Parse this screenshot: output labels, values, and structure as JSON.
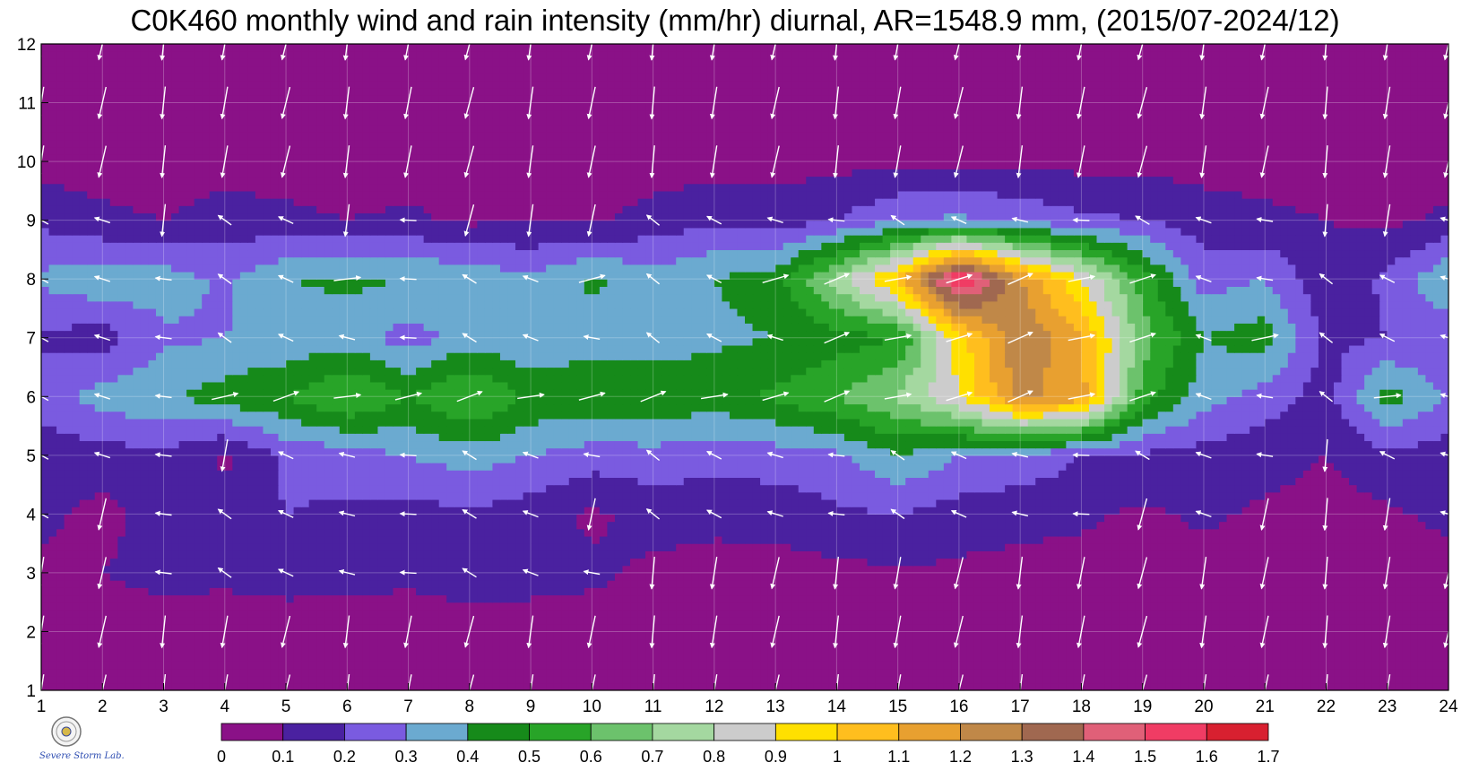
{
  "chart_data": {
    "type": "heatmap",
    "title": "C0K460 monthly wind and rain intensity (mm/hr) diurnal, AR=1548.9 mm, (2015/07-2024/12)",
    "x_ticks": [
      1,
      2,
      3,
      4,
      5,
      6,
      7,
      8,
      9,
      10,
      11,
      12,
      13,
      14,
      15,
      16,
      17,
      18,
      19,
      20,
      21,
      22,
      23,
      24
    ],
    "y_ticks": [
      1,
      2,
      3,
      4,
      5,
      6,
      7,
      8,
      9,
      10,
      11,
      12
    ],
    "xlim": [
      1,
      24
    ],
    "ylim": [
      1,
      12
    ],
    "grid": true,
    "colorbar": {
      "levels": [
        "0",
        "0.1",
        "0.2",
        "0.3",
        "0.4",
        "0.5",
        "0.6",
        "0.7",
        "0.8",
        "0.9",
        "1",
        "1.1",
        "1.2",
        "1.3",
        "1.4",
        "1.5",
        "1.6",
        "1.7"
      ],
      "colors": [
        "#8a1187",
        "#4a21a0",
        "#7a5be0",
        "#6baad0",
        "#168a1a",
        "#28a428",
        "#6cc26c",
        "#a4d8a0",
        "#cccccc",
        "#ffe000",
        "#ffbe1e",
        "#e8a030",
        "#c08848",
        "#a06850",
        "#e06078",
        "#f03c64",
        "#d82030"
      ]
    },
    "z_rows_month_1_to_12": [
      [
        0.05,
        0.05,
        0.05,
        0.05,
        0.05,
        0.05,
        0.05,
        0.05,
        0.05,
        0.05,
        0.05,
        0.05,
        0.05,
        0.05,
        0.05,
        0.05,
        0.05,
        0.05,
        0.05,
        0.05,
        0.05,
        0.05,
        0.05,
        0.05
      ],
      [
        0.05,
        0.05,
        0.05,
        0.05,
        0.05,
        0.05,
        0.05,
        0.05,
        0.05,
        0.05,
        0.05,
        0.05,
        0.05,
        0.05,
        0.05,
        0.05,
        0.05,
        0.05,
        0.05,
        0.05,
        0.05,
        0.05,
        0.05,
        0.05
      ],
      [
        0.08,
        0.1,
        0.13,
        0.12,
        0.14,
        0.13,
        0.12,
        0.15,
        0.14,
        0.12,
        0.08,
        0.06,
        0.06,
        0.07,
        0.09,
        0.08,
        0.07,
        0.06,
        0.05,
        0.05,
        0.05,
        0.05,
        0.05,
        0.05
      ],
      [
        0.12,
        0.07,
        0.15,
        0.13,
        0.2,
        0.18,
        0.16,
        0.18,
        0.15,
        0.08,
        0.14,
        0.13,
        0.14,
        0.18,
        0.2,
        0.15,
        0.13,
        0.12,
        0.08,
        0.12,
        0.08,
        0.06,
        0.08,
        0.13
      ],
      [
        0.14,
        0.15,
        0.18,
        0.08,
        0.22,
        0.25,
        0.3,
        0.35,
        0.3,
        0.25,
        0.26,
        0.24,
        0.25,
        0.28,
        0.4,
        0.3,
        0.28,
        0.2,
        0.18,
        0.16,
        0.14,
        0.1,
        0.18,
        0.15
      ],
      [
        0.25,
        0.35,
        0.38,
        0.45,
        0.5,
        0.62,
        0.5,
        0.62,
        0.48,
        0.5,
        0.48,
        0.46,
        0.52,
        0.6,
        0.72,
        0.9,
        1.22,
        1.15,
        0.55,
        0.35,
        0.25,
        0.15,
        0.45,
        0.28
      ],
      [
        0.18,
        0.15,
        0.28,
        0.3,
        0.32,
        0.35,
        0.25,
        0.35,
        0.3,
        0.35,
        0.35,
        0.38,
        0.4,
        0.45,
        0.5,
        0.95,
        1.3,
        1.1,
        0.65,
        0.4,
        0.45,
        0.18,
        0.2,
        0.22
      ],
      [
        0.32,
        0.38,
        0.35,
        0.28,
        0.4,
        0.42,
        0.4,
        0.38,
        0.32,
        0.42,
        0.35,
        0.4,
        0.45,
        0.75,
        1.05,
        1.62,
        1.2,
        0.9,
        0.55,
        0.25,
        0.3,
        0.12,
        0.22,
        0.4
      ],
      [
        0.18,
        0.12,
        0.1,
        0.15,
        0.12,
        0.1,
        0.12,
        0.08,
        0.1,
        0.08,
        0.14,
        0.18,
        0.15,
        0.2,
        0.3,
        0.32,
        0.28,
        0.22,
        0.2,
        0.15,
        0.12,
        0.1,
        0.08,
        0.12
      ],
      [
        0.05,
        0.06,
        0.05,
        0.05,
        0.06,
        0.05,
        0.05,
        0.05,
        0.05,
        0.05,
        0.05,
        0.06,
        0.06,
        0.07,
        0.08,
        0.08,
        0.08,
        0.07,
        0.07,
        0.06,
        0.06,
        0.05,
        0.05,
        0.05
      ],
      [
        0.05,
        0.05,
        0.05,
        0.05,
        0.05,
        0.05,
        0.05,
        0.05,
        0.05,
        0.05,
        0.05,
        0.05,
        0.05,
        0.05,
        0.05,
        0.05,
        0.05,
        0.05,
        0.05,
        0.05,
        0.05,
        0.05,
        0.05,
        0.05
      ],
      [
        0.05,
        0.05,
        0.05,
        0.05,
        0.05,
        0.05,
        0.05,
        0.05,
        0.05,
        0.05,
        0.05,
        0.05,
        0.05,
        0.05,
        0.05,
        0.05,
        0.05,
        0.05,
        0.05,
        0.05,
        0.05,
        0.05,
        0.05,
        0.05
      ]
    ]
  },
  "logo": {
    "text": "Severe Storm Lab."
  }
}
